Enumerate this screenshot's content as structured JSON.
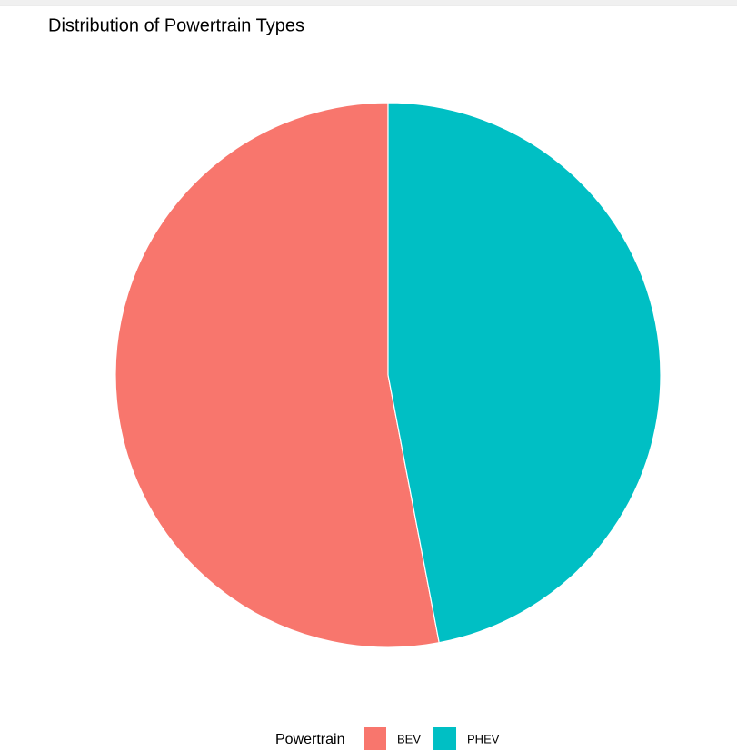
{
  "chart_data": {
    "type": "pie",
    "title": "Distribution of Powertrain Types",
    "legend_title": "Powertrain",
    "categories": [
      "BEV",
      "PHEV"
    ],
    "values": [
      53,
      47
    ],
    "colors": [
      "#F8766D",
      "#00BFC4"
    ],
    "legend": "bottom"
  }
}
